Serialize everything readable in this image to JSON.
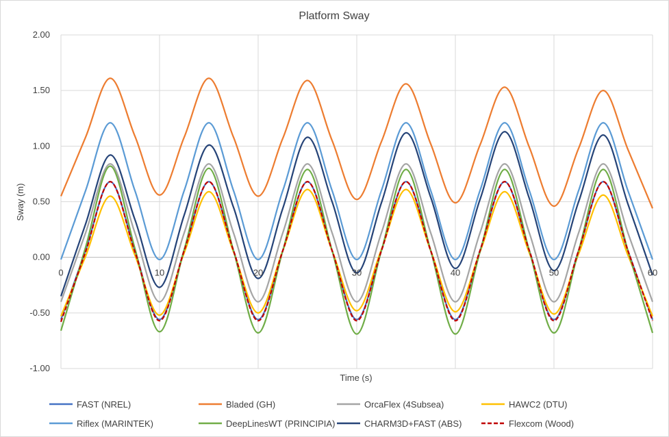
{
  "chart_data": {
    "type": "line",
    "title": "Platform Sway",
    "xlabel": "Time (s)",
    "ylabel": "Sway (m)",
    "xlim": [
      0,
      60
    ],
    "ylim": [
      -1.0,
      2.0
    ],
    "x_ticks": [
      "0",
      "10",
      "20",
      "30",
      "40",
      "50",
      "60"
    ],
    "y_ticks": [
      "2.00",
      "1.50",
      "1.00",
      "0.50",
      "0.00",
      "-0.50",
      "-1.00"
    ],
    "grid": true,
    "legend_position": "bottom",
    "x": [
      0,
      2.5,
      5,
      7.5,
      10,
      12.5,
      15,
      17.5,
      20,
      22.5,
      25,
      27.5,
      30,
      32.5,
      35,
      37.5,
      40,
      42.5,
      45,
      47.5,
      50,
      52.5,
      55,
      57.5,
      60
    ],
    "series": [
      {
        "name": "FAST (NREL)",
        "color": "#4472C4",
        "dashed": false,
        "values": [
          -0.56,
          0.06,
          0.68,
          0.06,
          -0.56,
          0.06,
          0.68,
          0.06,
          -0.56,
          0.06,
          0.68,
          0.06,
          -0.56,
          0.06,
          0.68,
          0.06,
          -0.56,
          0.06,
          0.68,
          0.06,
          -0.56,
          0.06,
          0.68,
          0.06,
          -0.56
        ]
      },
      {
        "name": "Bladed (GH)",
        "color": "#ED7D31",
        "dashed": false,
        "values": [
          0.55,
          1.08,
          1.61,
          1.09,
          0.56,
          1.08,
          1.61,
          1.08,
          0.55,
          1.07,
          1.59,
          1.05,
          0.52,
          1.04,
          1.56,
          1.02,
          0.49,
          1.01,
          1.53,
          0.99,
          0.46,
          0.98,
          1.5,
          0.97,
          0.44
        ]
      },
      {
        "name": "OrcaFlex (4Subsea)",
        "color": "#A5A5A5",
        "dashed": false,
        "values": [
          -0.4,
          0.22,
          0.84,
          0.22,
          -0.4,
          0.22,
          0.84,
          0.22,
          -0.4,
          0.22,
          0.84,
          0.22,
          -0.4,
          0.22,
          0.84,
          0.22,
          -0.4,
          0.22,
          0.84,
          0.22,
          -0.4,
          0.22,
          0.84,
          0.22,
          -0.4
        ]
      },
      {
        "name": "HAWC2 (DTU)",
        "color": "#FFC000",
        "dashed": false,
        "values": [
          -0.53,
          0.01,
          0.55,
          0.02,
          -0.52,
          0.04,
          0.59,
          0.05,
          -0.5,
          0.06,
          0.61,
          0.06,
          -0.48,
          0.07,
          0.61,
          0.06,
          -0.49,
          0.05,
          0.59,
          0.04,
          -0.51,
          0.03,
          0.56,
          0.02,
          -0.53
        ]
      },
      {
        "name": "Riflex (MARINTEK)",
        "color": "#5B9BD5",
        "dashed": false,
        "values": [
          -0.02,
          0.6,
          1.21,
          0.6,
          -0.02,
          0.6,
          1.21,
          0.6,
          -0.02,
          0.6,
          1.21,
          0.6,
          -0.02,
          0.6,
          1.21,
          0.6,
          -0.02,
          0.6,
          1.21,
          0.6,
          -0.02,
          0.6,
          1.21,
          0.6,
          -0.02
        ]
      },
      {
        "name": "DeepLinesWT (PRINCIPIA)",
        "color": "#70AD47",
        "dashed": false,
        "values": [
          -0.66,
          0.09,
          0.82,
          0.08,
          -0.67,
          0.07,
          0.8,
          0.06,
          -0.68,
          0.06,
          0.79,
          0.06,
          -0.69,
          0.06,
          0.79,
          0.06,
          -0.69,
          0.05,
          0.79,
          0.06,
          -0.68,
          0.06,
          0.79,
          0.06,
          -0.68
        ]
      },
      {
        "name": "CHARM3D+FAST (ABS)",
        "color": "#264478",
        "dashed": false,
        "values": [
          -0.35,
          0.3,
          0.92,
          0.34,
          -0.27,
          0.38,
          1.01,
          0.45,
          -0.19,
          0.44,
          1.08,
          0.5,
          -0.14,
          0.49,
          1.12,
          0.54,
          -0.1,
          0.52,
          1.13,
          0.53,
          -0.12,
          0.5,
          1.1,
          0.48,
          -0.16
        ]
      },
      {
        "name": "Flexcom (Wood)",
        "color": "#C00000",
        "dashed": true,
        "values": [
          -0.58,
          0.05,
          0.68,
          0.05,
          -0.57,
          0.06,
          0.68,
          0.06,
          -0.57,
          0.06,
          0.68,
          0.06,
          -0.57,
          0.06,
          0.68,
          0.06,
          -0.57,
          0.06,
          0.68,
          0.06,
          -0.57,
          0.06,
          0.68,
          0.06,
          -0.57
        ]
      }
    ]
  }
}
